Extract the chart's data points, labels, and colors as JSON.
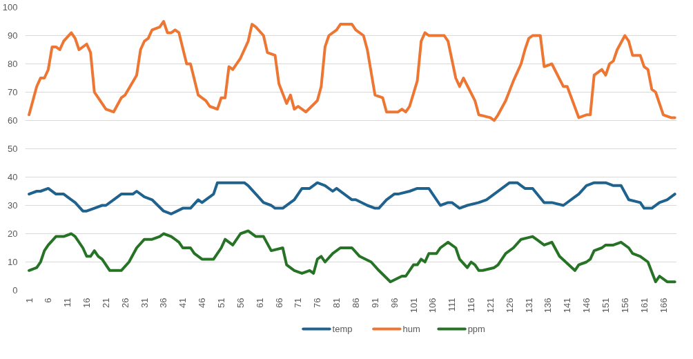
{
  "chart_data": {
    "type": "line",
    "xlim": [
      0,
      169.5
    ],
    "xticks": [
      1,
      6,
      11,
      16,
      21,
      26,
      31,
      36,
      41,
      46,
      51,
      56,
      61,
      66,
      71,
      76,
      81,
      86,
      91,
      96,
      101,
      106,
      111,
      116,
      121,
      126,
      131,
      136,
      141,
      146,
      151,
      156,
      161,
      166
    ],
    "ylim": [
      0,
      100
    ],
    "yticks": [
      0,
      10,
      20,
      30,
      40,
      50,
      60,
      70,
      80,
      90,
      100
    ],
    "grid": "y",
    "legend": "bottom",
    "series": [
      {
        "name": "temp",
        "color": "#1f628e",
        "x": [
          1,
          3,
          4,
          6,
          8,
          10,
          12,
          13,
          15,
          16,
          18,
          20,
          21,
          23,
          25,
          28,
          29,
          31,
          33,
          36,
          38,
          41,
          43,
          45,
          46,
          49,
          50,
          53,
          55,
          57,
          58,
          60,
          62,
          64,
          65,
          66,
          67,
          69,
          70,
          72,
          74,
          76,
          78,
          80,
          81,
          83,
          85,
          86,
          89,
          91,
          92,
          94,
          96,
          97,
          100,
          102,
          105,
          106,
          108,
          110,
          111,
          113,
          115,
          118,
          120,
          122,
          124,
          126,
          128,
          129,
          130,
          132,
          135,
          137,
          140,
          143,
          144,
          146,
          148,
          151,
          153,
          155,
          157,
          160,
          161,
          163,
          165,
          167,
          169
        ],
        "values": [
          34,
          35,
          35,
          36,
          34,
          34,
          32,
          31,
          28,
          28,
          29,
          30,
          30,
          32,
          34,
          34,
          35,
          33,
          32,
          28,
          27,
          29,
          29,
          32,
          31,
          34,
          38,
          38,
          38,
          38,
          37,
          34,
          31,
          30,
          29,
          29,
          29,
          31,
          32,
          36,
          36,
          38,
          37,
          35,
          36,
          34,
          32,
          32,
          30,
          29,
          29,
          32,
          34,
          34,
          35,
          36,
          36,
          34,
          30,
          31,
          31,
          29,
          30,
          31,
          32,
          34,
          36,
          38,
          38,
          37,
          36,
          36,
          31,
          31,
          30,
          33,
          34,
          37,
          38,
          38,
          37,
          37,
          32,
          31,
          29,
          29,
          31,
          32,
          34
        ]
      },
      {
        "name": "hum",
        "color": "#ee7633",
        "x": [
          1,
          3,
          4,
          5,
          6,
          7,
          8,
          9,
          10,
          12,
          13,
          14,
          16,
          17,
          18,
          19,
          21,
          23,
          25,
          26,
          29,
          30,
          31,
          32,
          33,
          35,
          36,
          37,
          38,
          39,
          40,
          42,
          43,
          45,
          47,
          48,
          50,
          51,
          52,
          53,
          54,
          56,
          58,
          59,
          60,
          62,
          63,
          65,
          66,
          68,
          69,
          70,
          71,
          73,
          76,
          77,
          78,
          79,
          81,
          82,
          85,
          86,
          88,
          89,
          91,
          93,
          94,
          97,
          98,
          99,
          100,
          102,
          103,
          104,
          105,
          108,
          109,
          110,
          112,
          113,
          114,
          117,
          118,
          121,
          122,
          123,
          125,
          127,
          129,
          130,
          131,
          132,
          134,
          135,
          137,
          140,
          141,
          144,
          146,
          147,
          148,
          150,
          151,
          152,
          153,
          154,
          156,
          157,
          158,
          160,
          161,
          162,
          163,
          164,
          166,
          168,
          169
        ],
        "values": [
          62,
          72,
          75,
          75,
          78,
          86,
          86,
          85,
          88,
          91,
          89,
          85,
          87,
          84,
          70,
          68,
          64,
          63,
          68,
          69,
          76,
          85,
          88,
          89,
          92,
          93,
          95,
          91,
          91,
          92,
          91,
          80,
          80,
          69,
          67,
          65,
          64,
          68,
          68,
          79,
          78,
          82,
          88,
          94,
          93,
          90,
          84,
          83,
          73,
          66,
          69,
          64,
          65,
          63,
          67,
          72,
          86,
          90,
          92,
          94,
          94,
          92,
          90,
          85,
          69,
          68,
          63,
          63,
          64,
          63,
          65,
          74,
          88,
          91,
          90,
          90,
          90,
          88,
          75,
          72,
          75,
          67,
          62,
          61,
          60,
          62,
          67,
          74,
          80,
          85,
          89,
          90,
          90,
          79,
          80,
          72,
          72,
          61,
          62,
          62,
          76,
          78,
          76,
          80,
          81,
          85,
          90,
          88,
          83,
          83,
          79,
          78,
          71,
          70,
          62,
          61,
          61
        ]
      },
      {
        "name": "ppm",
        "color": "#267326",
        "x": [
          1,
          3,
          4,
          5,
          6,
          8,
          10,
          12,
          13,
          15,
          16,
          17,
          18,
          19,
          20,
          22,
          25,
          27,
          29,
          31,
          33,
          35,
          36,
          38,
          40,
          41,
          43,
          44,
          46,
          47,
          49,
          51,
          52,
          54,
          56,
          58,
          60,
          62,
          64,
          67,
          68,
          70,
          72,
          74,
          75,
          76,
          77,
          78,
          80,
          82,
          85,
          87,
          90,
          92,
          95,
          98,
          99,
          101,
          102,
          103,
          104,
          105,
          107,
          108,
          110,
          112,
          113,
          115,
          116,
          117,
          118,
          119,
          122,
          123,
          125,
          127,
          129,
          132,
          133,
          135,
          137,
          139,
          143,
          144,
          146,
          147,
          148,
          150,
          151,
          153,
          155,
          157,
          158,
          160,
          162,
          164,
          165,
          167,
          169
        ],
        "values": [
          7,
          8,
          10,
          14,
          16,
          19,
          19,
          20,
          19,
          15,
          12,
          12,
          14,
          12,
          11,
          7,
          7,
          10,
          15,
          18,
          18,
          19,
          20,
          19,
          17,
          15,
          15,
          13,
          11,
          11,
          11,
          15,
          18,
          16,
          20,
          21,
          19,
          19,
          14,
          15,
          9,
          7,
          6,
          7,
          6,
          11,
          12,
          10,
          13,
          15,
          15,
          12,
          10,
          7,
          3,
          5,
          5,
          9,
          9,
          11,
          10,
          13,
          13,
          15,
          17,
          15,
          11,
          8,
          10,
          9,
          7,
          7,
          8,
          9,
          13,
          15,
          18,
          19,
          18,
          16,
          17,
          12,
          7,
          9,
          10,
          11,
          14,
          15,
          16,
          16,
          17,
          15,
          13,
          12,
          10,
          3,
          5,
          3,
          3
        ]
      }
    ]
  }
}
